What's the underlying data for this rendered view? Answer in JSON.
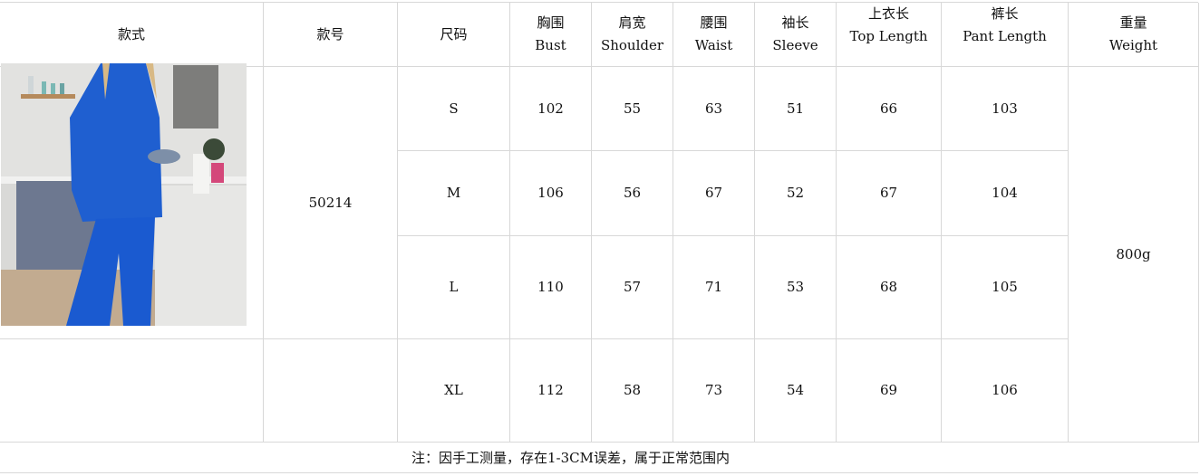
{
  "headers": {
    "style": "款式",
    "item_no": "款号",
    "size": "尺码",
    "bust": {
      "zh": "胸围",
      "en": "Bust"
    },
    "shoulder": {
      "zh": "肩宽",
      "en": "Shoulder"
    },
    "waist": {
      "zh": "腰围",
      "en": "Waist"
    },
    "sleeve": {
      "zh": "袖长",
      "en": "Sleeve"
    },
    "top_length": {
      "zh": "上衣长",
      "en": "Top Length"
    },
    "pant_length": {
      "zh": "裤长",
      "en": "Pant Length"
    },
    "weight": {
      "zh": "重量",
      "en": "Weight"
    }
  },
  "item_no": "50214",
  "weight": "800g",
  "rows": [
    {
      "size": "S",
      "bust": "102",
      "shoulder": "55",
      "waist": "63",
      "sleeve": "51",
      "top_length": "66",
      "pant_length": "103"
    },
    {
      "size": "M",
      "bust": "106",
      "shoulder": "56",
      "waist": "67",
      "sleeve": "52",
      "top_length": "67",
      "pant_length": "104"
    },
    {
      "size": "L",
      "bust": "110",
      "shoulder": "57",
      "waist": "71",
      "sleeve": "53",
      "top_length": "68",
      "pant_length": "105"
    },
    {
      "size": "XL",
      "bust": "112",
      "shoulder": "58",
      "waist": "73",
      "sleeve": "54",
      "top_length": "69",
      "pant_length": "106"
    }
  ],
  "note": "注：因手工测量，存在1-3CM误差，属于正常范围内",
  "colors": {
    "garment": "#1f5fd0",
    "grid": "#d8d8d8"
  }
}
